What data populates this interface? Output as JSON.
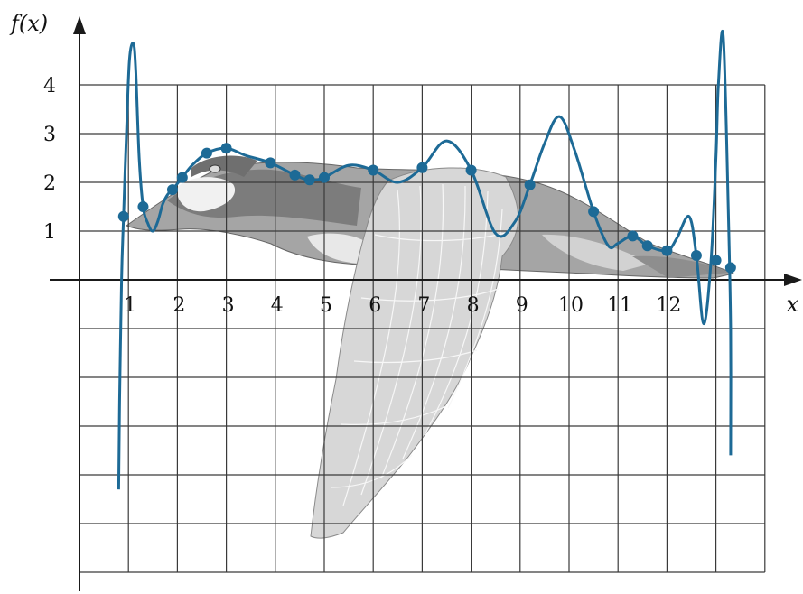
{
  "chart_data": {
    "type": "line",
    "title": "",
    "xlabel": "x",
    "ylabel": "f(x)",
    "xlim": [
      -0.8,
      14.4
    ],
    "ylim": [
      -6.0,
      5.5
    ],
    "x_ticks": [
      "1",
      "2",
      "3",
      "4",
      "5",
      "6",
      "7",
      "8",
      "9",
      "10",
      "11",
      "12"
    ],
    "y_ticks": [
      "1",
      "2",
      "3",
      "4"
    ],
    "grid": true,
    "curve_color": "#1d6a96",
    "background_illustration": "flying-goose",
    "data_points": {
      "x": [
        0.9,
        1.3,
        1.9,
        2.1,
        2.6,
        3.0,
        3.9,
        4.4,
        4.7,
        5.0,
        6.0,
        7.0,
        8.0,
        9.2,
        10.5,
        11.3,
        11.6,
        12.0,
        12.6,
        13.0,
        13.3
      ],
      "y": [
        1.3,
        1.5,
        1.85,
        2.1,
        2.6,
        2.7,
        2.4,
        2.15,
        2.05,
        2.1,
        2.25,
        2.3,
        2.25,
        1.95,
        1.4,
        0.9,
        0.7,
        0.6,
        0.5,
        0.4,
        0.25
      ]
    },
    "interpolating_curve": {
      "x": [
        0.8,
        0.82,
        0.86,
        0.9,
        0.96,
        1.02,
        1.1,
        1.15,
        1.22,
        1.3,
        1.4,
        1.5,
        1.6,
        1.7,
        1.8,
        1.9,
        2.1,
        2.3,
        2.6,
        3.0,
        3.4,
        3.9,
        4.4,
        4.7,
        5.0,
        5.5,
        6.0,
        6.5,
        7.0,
        7.5,
        8.0,
        8.5,
        8.9,
        9.2,
        9.5,
        9.8,
        10.1,
        10.5,
        10.8,
        11.0,
        11.3,
        11.6,
        12.0,
        12.2,
        12.45,
        12.6,
        12.75,
        12.9,
        13.0,
        13.05,
        13.15,
        13.25,
        13.3,
        13.3
      ],
      "y": [
        -4.3,
        -2.5,
        0.0,
        1.3,
        3.0,
        4.5,
        4.85,
        4.3,
        2.5,
        1.5,
        1.15,
        1.0,
        1.2,
        1.55,
        1.75,
        1.85,
        2.1,
        2.35,
        2.6,
        2.7,
        2.55,
        2.4,
        2.15,
        2.05,
        2.1,
        2.35,
        2.25,
        2.0,
        2.3,
        2.85,
        2.25,
        0.95,
        1.2,
        1.95,
        2.8,
        3.35,
        2.7,
        1.4,
        0.7,
        0.75,
        0.9,
        0.7,
        0.6,
        0.85,
        1.3,
        0.5,
        -0.9,
        0.4,
        2.5,
        4.0,
        5.0,
        1.5,
        -1.0,
        -3.6
      ]
    }
  }
}
